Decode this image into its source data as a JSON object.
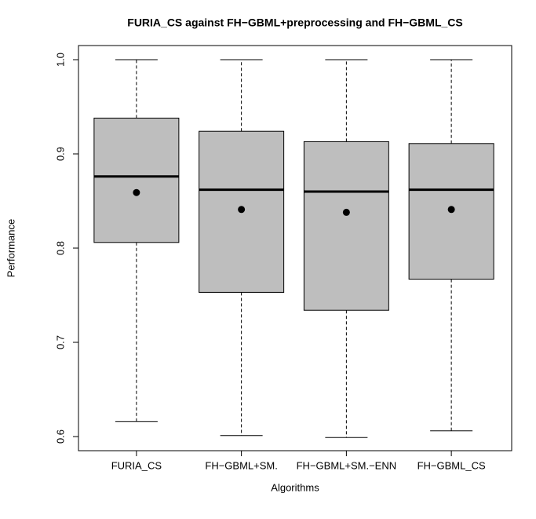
{
  "chart_data": {
    "type": "boxplot",
    "title": "FURIA_CS against FH−GBML+preprocessing and FH−GBML_CS",
    "x_label": "Algorithms",
    "y_label": "Performance",
    "categories": [
      "FURIA_CS",
      "FH−GBML+SM.",
      "FH−GBML+SM.−ENN",
      "FH−GBML_CS"
    ],
    "whisker_high": [
      1.0,
      1.0,
      1.0,
      1.0
    ],
    "q3": [
      0.938,
      0.924,
      0.913,
      0.911
    ],
    "median": [
      0.876,
      0.862,
      0.86,
      0.862
    ],
    "q1": [
      0.806,
      0.753,
      0.734,
      0.767
    ],
    "whisker_low": [
      0.616,
      0.601,
      0.599,
      0.606
    ],
    "mean": [
      0.859,
      0.841,
      0.838,
      0.841
    ],
    "color": "#bebebe",
    "ylim": [
      0.585,
      1.015
    ],
    "yticks": [
      {
        "value": 0.6,
        "label": "0.6"
      },
      {
        "value": 0.7,
        "label": "0.7"
      },
      {
        "value": 0.8,
        "label": "0.8"
      },
      {
        "value": 0.9,
        "label": "0.9"
      },
      {
        "value": 1.0,
        "label": "1.0"
      }
    ]
  }
}
